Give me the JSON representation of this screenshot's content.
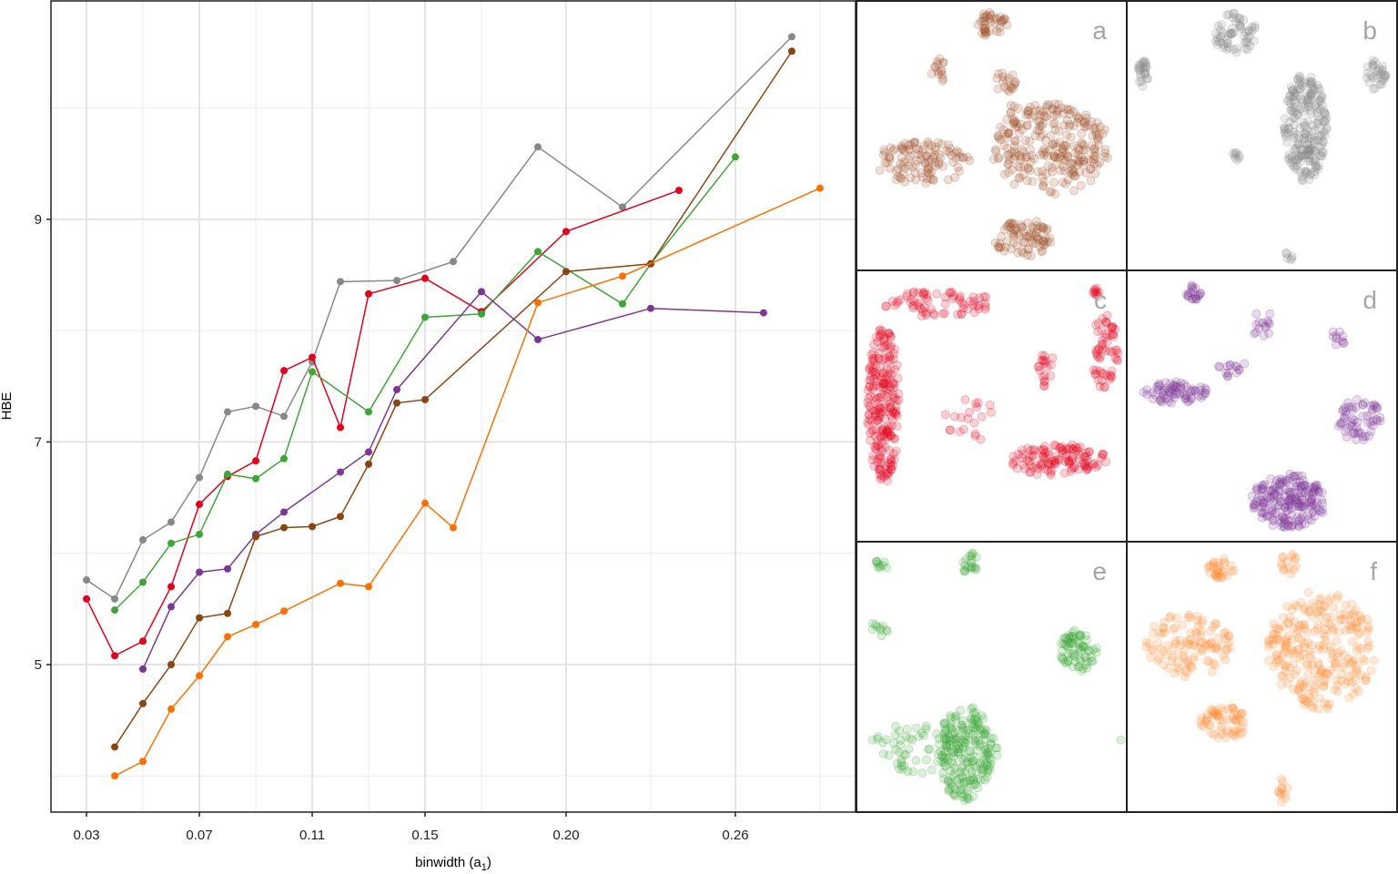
{
  "chart_data": [
    {
      "type": "line",
      "xlabel": "binwidth (a",
      "xlabel_sub": "1",
      "xlabel_close": ")",
      "ylabel": "HBE",
      "xlim": [
        0.0174,
        0.3026
      ],
      "ylim": [
        3.675,
        10.97
      ],
      "x_ticks": [
        0.03,
        0.07,
        0.11,
        0.15,
        0.2,
        0.26
      ],
      "x_tick_labels": [
        "0.03",
        "0.07",
        "0.11",
        "0.15",
        "0.20",
        "0.26"
      ],
      "x_minor_grid": [
        0.05,
        0.09,
        0.13,
        0.17,
        0.23,
        0.29
      ],
      "y_ticks": [
        5,
        7,
        9
      ],
      "y_tick_labels": [
        "5",
        "7",
        "9"
      ],
      "y_minor_grid": [
        4,
        6,
        8,
        10
      ],
      "grid": true,
      "series": [
        {
          "color": "#888888",
          "x": [
            0.03,
            0.04,
            0.05,
            0.06,
            0.07,
            0.08,
            0.09,
            0.1,
            0.11,
            0.12,
            0.14,
            0.16,
            0.19,
            0.22,
            0.28
          ],
          "y": [
            5.76,
            5.59,
            6.12,
            6.28,
            6.68,
            7.27,
            7.32,
            7.23,
            7.72,
            8.44,
            8.45,
            8.62,
            9.65,
            9.11,
            10.64
          ]
        },
        {
          "color": "#e2001a",
          "x": [
            0.03,
            0.04,
            0.05,
            0.06,
            0.07,
            0.08,
            0.09,
            0.1,
            0.11,
            0.12,
            0.13,
            0.15,
            0.17,
            0.2,
            0.24
          ],
          "y": [
            5.59,
            5.08,
            5.21,
            5.7,
            6.44,
            6.69,
            6.83,
            7.64,
            7.76,
            7.13,
            8.33,
            8.47,
            8.17,
            8.89,
            9.26
          ]
        },
        {
          "color": "#3ca636",
          "x": [
            0.04,
            0.05,
            0.06,
            0.07,
            0.08,
            0.09,
            0.1,
            0.11,
            0.13,
            0.15,
            0.17,
            0.19,
            0.22,
            0.23,
            0.26
          ],
          "y": [
            5.49,
            5.74,
            6.09,
            6.17,
            6.71,
            6.67,
            6.85,
            7.63,
            7.27,
            8.12,
            8.15,
            8.71,
            8.24,
            8.6,
            9.56
          ]
        },
        {
          "color": "#7d3596",
          "x": [
            0.05,
            0.06,
            0.07,
            0.08,
            0.09,
            0.1,
            0.12,
            0.13,
            0.14,
            0.17,
            0.19,
            0.23,
            0.27
          ],
          "y": [
            4.96,
            5.52,
            5.83,
            5.86,
            6.17,
            6.37,
            6.73,
            6.91,
            7.47,
            8.35,
            7.92,
            8.2,
            8.16
          ]
        },
        {
          "color": "#8b4513",
          "x": [
            0.04,
            0.05,
            0.06,
            0.07,
            0.08,
            0.09,
            0.1,
            0.11,
            0.12,
            0.13,
            0.14,
            0.15,
            0.2,
            0.23,
            0.28
          ],
          "y": [
            4.26,
            4.65,
            5.0,
            5.42,
            5.46,
            6.15,
            6.23,
            6.24,
            6.33,
            6.8,
            7.35,
            7.38,
            8.53,
            8.6,
            10.51
          ]
        },
        {
          "color": "#ff6f00",
          "x": [
            0.04,
            0.05,
            0.06,
            0.07,
            0.08,
            0.09,
            0.1,
            0.12,
            0.13,
            0.15,
            0.16,
            0.19,
            0.22,
            0.29
          ],
          "y": [
            4.0,
            4.13,
            4.6,
            4.9,
            5.25,
            5.36,
            5.48,
            5.73,
            5.7,
            6.45,
            6.23,
            8.25,
            8.49,
            9.28
          ]
        }
      ]
    },
    {
      "type": "scatter",
      "panels": [
        {
          "label": "a",
          "color": "#a0522d"
        },
        {
          "label": "b",
          "color": "#888888"
        },
        {
          "label": "c",
          "color": "#e2001a"
        },
        {
          "label": "d",
          "color": "#7d3596"
        },
        {
          "label": "e",
          "color": "#3ca636"
        },
        {
          "label": "f",
          "color": "#ff8c33"
        }
      ]
    }
  ]
}
